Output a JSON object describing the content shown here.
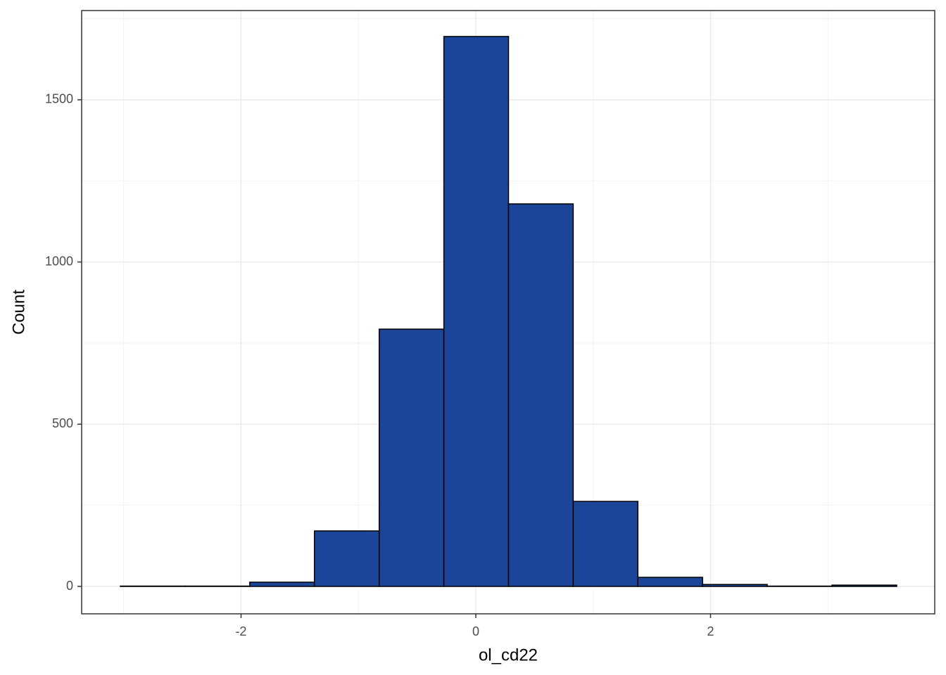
{
  "chart_data": {
    "type": "histogram",
    "x_label": "ol_cd22",
    "y_label": "Count",
    "bins": [
      -3.028,
      -2.477,
      -1.926,
      -1.375,
      -0.823,
      -0.272,
      0.279,
      0.83,
      1.381,
      1.932,
      2.483,
      3.034,
      3.586
    ],
    "values": [
      1,
      1,
      13,
      171,
      793,
      1695,
      1179,
      262,
      28,
      6,
      1,
      4
    ],
    "color": "#1a4599",
    "xlim": [
      -3.358,
      3.91
    ],
    "xticks": [
      -2,
      0,
      2
    ],
    "ylim": [
      -84.5,
      1775
    ],
    "yticks": [
      0,
      500,
      1000,
      1500
    ],
    "grid": true
  }
}
